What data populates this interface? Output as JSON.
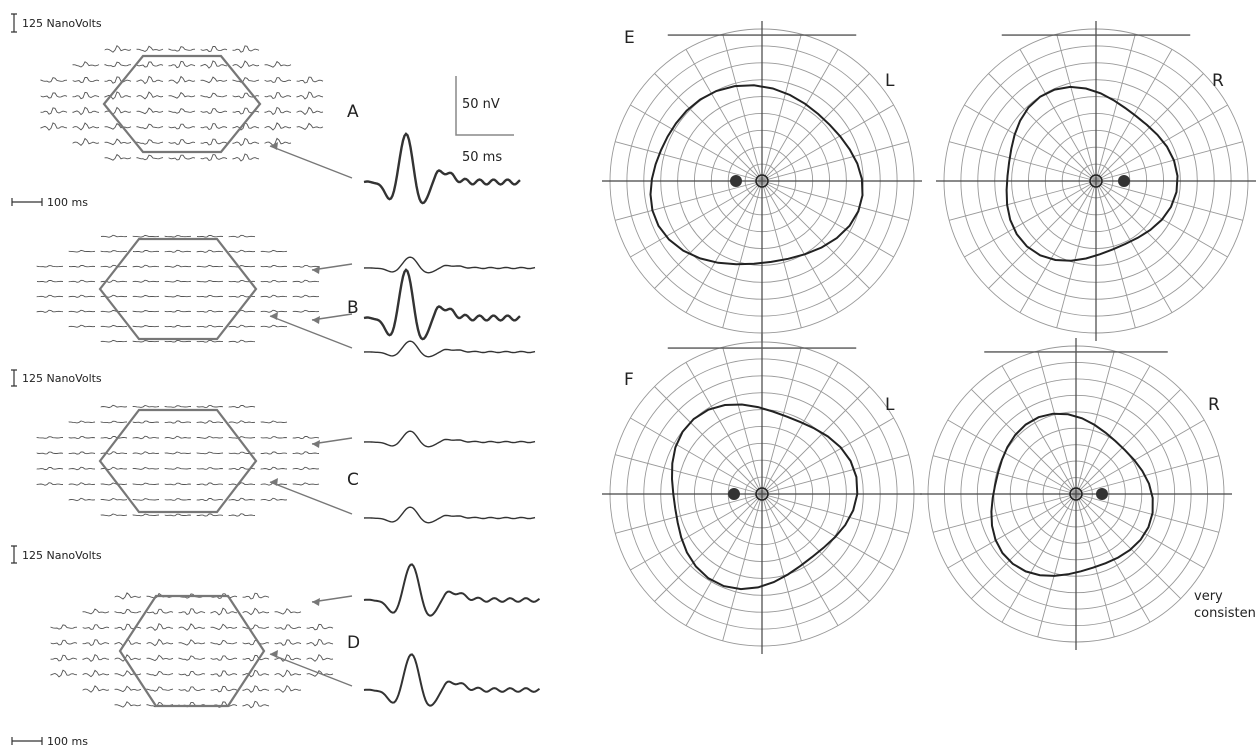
{
  "scale_label": "125 NanoVolts",
  "time_label": "100 ms",
  "calibration": {
    "amplitude": "50 nV",
    "time": "50 ms"
  },
  "panels": {
    "A": "A",
    "B": "B",
    "C": "C",
    "D": "D",
    "E": "E",
    "F": "F"
  },
  "eye_labels": {
    "left": "L",
    "right": "R"
  },
  "note": [
    "very",
    "consistent"
  ],
  "colors": {
    "ink": "#222222",
    "frame": "#777777",
    "grid": "#999999",
    "wave": "#555555"
  }
}
